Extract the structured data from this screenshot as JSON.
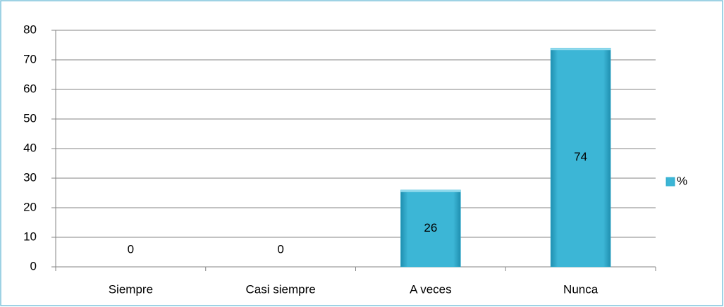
{
  "chart_data": {
    "type": "bar",
    "categories": [
      "Siempre",
      "Casi siempre",
      "A veces",
      "Nunca"
    ],
    "series": [
      {
        "name": "%",
        "color": "#3cb6d6",
        "values": [
          0,
          0,
          26,
          74
        ]
      }
    ],
    "ylim": [
      0,
      80
    ],
    "yticks": [
      0,
      10,
      20,
      30,
      40,
      50,
      60,
      70,
      80
    ],
    "grid": true,
    "legend": "right"
  }
}
